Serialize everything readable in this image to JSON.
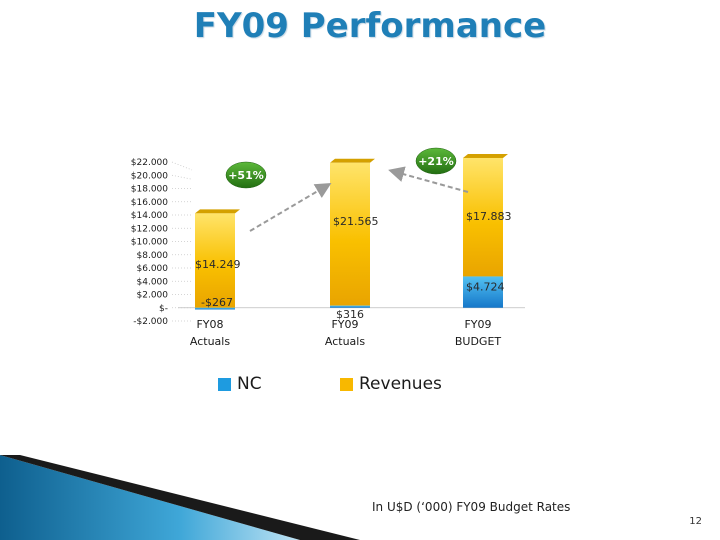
{
  "slide": {
    "title": "FY09 Performance",
    "footnote": "In U$D (‘000) FY09 Budget Rates",
    "page_number": "12"
  },
  "colors": {
    "revenues": "#f8b800",
    "nc": "#1e9be0",
    "growth_badge": "#2e8a1a",
    "title": "#1f7fb7"
  },
  "legend": [
    {
      "name": "NC",
      "color": "#1e9be0"
    },
    {
      "name": "Revenues",
      "color": "#f8b800"
    }
  ],
  "chart_data": {
    "type": "bar",
    "stacked": true,
    "title": "",
    "xlabel": "",
    "ylabel": "",
    "ylim": [
      -2000,
      22000
    ],
    "yticks": [
      "$22.000",
      "$20.000",
      "$18.000",
      "$16.000",
      "$14.000",
      "$12.000",
      "$10.000",
      "$8.000",
      "$6.000",
      "$4.000",
      "$2.000",
      "$-",
      "-$2.000"
    ],
    "categories": [
      {
        "line1": "FY08",
        "line2": "Actuals"
      },
      {
        "line1": "FY09",
        "line2": "Actuals"
      },
      {
        "line1": "FY09",
        "line2": "BUDGET"
      }
    ],
    "series": [
      {
        "name": "NC",
        "values": [
          -267,
          316,
          4724
        ],
        "labels": [
          "-$267",
          "$316",
          "$4.724"
        ]
      },
      {
        "name": "Revenues",
        "values": [
          14249,
          21565,
          17883
        ],
        "labels": [
          "$14.249",
          "$21.565",
          "$17.883"
        ]
      }
    ],
    "annotations": [
      {
        "text": "+51%",
        "from": 0,
        "to": 1
      },
      {
        "text": "+21%",
        "from": 2,
        "to": 1
      }
    ]
  }
}
